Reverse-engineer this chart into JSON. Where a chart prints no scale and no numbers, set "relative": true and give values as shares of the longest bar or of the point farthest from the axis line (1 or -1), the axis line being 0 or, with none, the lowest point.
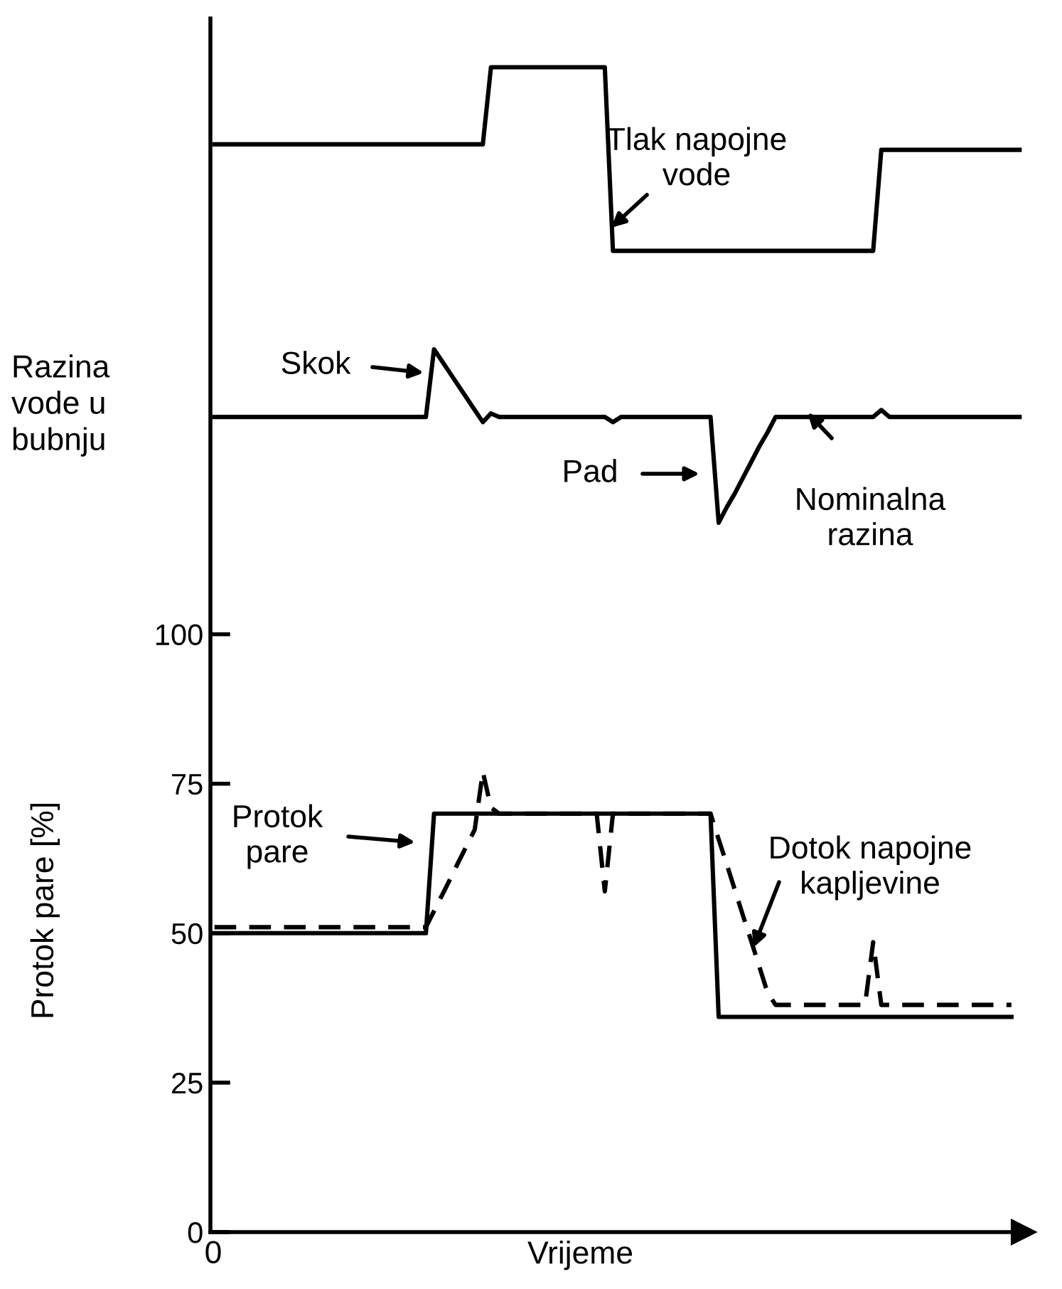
{
  "chart_data": [
    {
      "type": "line",
      "relative": true,
      "line_style": "solid",
      "categories": [
        null,
        null,
        null,
        null,
        null,
        null,
        null,
        null,
        null,
        null,
        null,
        null,
        null,
        null,
        null,
        null,
        null,
        null,
        null,
        null,
        null,
        null,
        null,
        null,
        null,
        null,
        null,
        null,
        null,
        null,
        null,
        null,
        null,
        null,
        null,
        null,
        null,
        null,
        null,
        null,
        null,
        null,
        null,
        null,
        null,
        null,
        null,
        null,
        null,
        null,
        null,
        null,
        null,
        null,
        null,
        null,
        null,
        null,
        null,
        null,
        null,
        null,
        null,
        null,
        null,
        null,
        null,
        null,
        null,
        null,
        null,
        null,
        null,
        null,
        null,
        null,
        null,
        null,
        null,
        null,
        null,
        null,
        null,
        null,
        null,
        null,
        null,
        null,
        null,
        null,
        null,
        null,
        null,
        null,
        null,
        null,
        null,
        null,
        null,
        null
      ],
      "series": [
        {
          "color": "#000000",
          "values": [
            0.58,
            0.58,
            0.58,
            0.58,
            0.58,
            0.58,
            0.58,
            0.58,
            0.58,
            0.58,
            0.58,
            0.58,
            0.58,
            0.58,
            0.58,
            0.58,
            0.58,
            0.58,
            0.58,
            0.58,
            0.58,
            0.58,
            0.58,
            0.58,
            0.58,
            0.58,
            0.58,
            0.58,
            0.58,
            0.58,
            0.58,
            0.58,
            0.58,
            0.58,
            1,
            1,
            1,
            1,
            1,
            1,
            1,
            1,
            1,
            1,
            1,
            1,
            1,
            1,
            1,
            0,
            0,
            0,
            0,
            0,
            0,
            0,
            0,
            0,
            0,
            0,
            0,
            0,
            0,
            0,
            0,
            0,
            0,
            0,
            0,
            0,
            0,
            0,
            0,
            0,
            0,
            0,
            0,
            0,
            0,
            0,
            0,
            0,
            0.55,
            0.55,
            0.55,
            0.55,
            0.55,
            0.55,
            0.55,
            0.55,
            0.55,
            0.55,
            0.55,
            0.55,
            0.55,
            0.55,
            0.55,
            0.55,
            0.55,
            0.55
          ]
        }
      ],
      "annotations": [
        "Tlak napojne\nvode"
      ]
    },
    {
      "type": "line",
      "relative": true,
      "line_style": "solid",
      "ylabel": "Razina\nvode u\nbubnju",
      "categories": [
        null,
        null,
        null,
        null,
        null,
        null,
        null,
        null,
        null,
        null,
        null,
        null,
        null,
        null,
        null,
        null,
        null,
        null,
        null,
        null,
        null,
        null,
        null,
        null,
        null,
        null,
        null,
        null,
        null,
        null,
        null,
        null,
        null,
        null,
        null,
        null,
        null,
        null,
        null,
        null,
        null,
        null,
        null,
        null,
        null,
        null,
        null,
        null,
        null,
        null,
        null,
        null,
        null,
        null,
        null,
        null,
        null,
        null,
        null,
        null,
        null,
        null,
        null,
        null,
        null,
        null,
        null,
        null,
        null,
        null,
        null,
        null,
        null,
        null,
        null,
        null,
        null,
        null,
        null,
        null,
        null,
        null,
        null,
        null,
        null,
        null,
        null,
        null,
        null,
        null,
        null,
        null,
        null,
        null,
        null,
        null,
        null,
        null,
        null,
        null
      ],
      "series": [
        {
          "color": "#000000",
          "values": [
            0.61,
            0.61,
            0.61,
            0.61,
            0.61,
            0.61,
            0.61,
            0.61,
            0.61,
            0.61,
            0.61,
            0.61,
            0.61,
            0.61,
            0.61,
            0.61,
            0.61,
            0.61,
            0.61,
            0.61,
            0.61,
            0.61,
            0.61,
            0.61,
            0.61,
            0.61,
            0.61,
            1,
            0.93,
            0.86,
            0.79,
            0.72,
            0.65,
            0.58,
            0.63,
            0.61,
            0.61,
            0.61,
            0.61,
            0.61,
            0.61,
            0.61,
            0.61,
            0.61,
            0.61,
            0.61,
            0.61,
            0.61,
            0.61,
            0.58,
            0.61,
            0.61,
            0.61,
            0.61,
            0.61,
            0.61,
            0.61,
            0.61,
            0.61,
            0.61,
            0.61,
            0.61,
            0,
            0.09,
            0.17,
            0.26,
            0.35,
            0.44,
            0.52,
            0.61,
            0.61,
            0.61,
            0.61,
            0.61,
            0.61,
            0.61,
            0.61,
            0.61,
            0.61,
            0.61,
            0.61,
            0.61,
            0.65,
            0.61,
            0.61,
            0.61,
            0.61,
            0.61,
            0.61,
            0.61,
            0.61,
            0.61,
            0.61,
            0.61,
            0.61,
            0.61,
            0.61,
            0.61,
            0.61,
            0.61
          ]
        }
      ],
      "annotations": [
        "Skok",
        "Pad",
        "Nominalna\nrazina"
      ]
    },
    {
      "type": "line",
      "ylim": [
        0,
        203
      ],
      "yticks": [
        0,
        25,
        50,
        75,
        100
      ],
      "xlabel": "Vrijeme",
      "ylabel": "Protok pare [%]",
      "categories": [
        null,
        null,
        null,
        null,
        null,
        null,
        null,
        null,
        null,
        null,
        null,
        null,
        null,
        null,
        null,
        null,
        null,
        null,
        null,
        null,
        null,
        null,
        null,
        null,
        null,
        null,
        null,
        null,
        null,
        null,
        null,
        null,
        null,
        null,
        null,
        null,
        null,
        null,
        null,
        null,
        null,
        null,
        null,
        null,
        null,
        null,
        null,
        null,
        null,
        null,
        null,
        null,
        null,
        null,
        null,
        null,
        null,
        null,
        null,
        null,
        null,
        null,
        null,
        null,
        null,
        null,
        null,
        null,
        null,
        null,
        null,
        null,
        null,
        null,
        null,
        null,
        null,
        null,
        null,
        null,
        null,
        null,
        null,
        null,
        null,
        null,
        null,
        null,
        null,
        null,
        null,
        null,
        null,
        null,
        null,
        null,
        null,
        null,
        null,
        null
      ],
      "series": [
        {
          "color": "#000000",
          "line_style": "solid",
          "values": [
            50,
            50,
            50,
            50,
            50,
            50,
            50,
            50,
            50,
            50,
            50,
            50,
            50,
            50,
            50,
            50,
            50,
            50,
            50,
            50,
            50,
            50,
            50,
            50,
            50,
            50,
            50,
            70,
            70,
            70,
            70,
            70,
            70,
            70,
            70,
            70,
            70,
            70,
            70,
            70,
            70,
            70,
            70,
            70,
            70,
            70,
            70,
            70,
            70,
            70,
            70,
            70,
            70,
            70,
            70,
            70,
            70,
            70,
            70,
            70,
            70,
            70,
            36,
            36,
            36,
            36,
            36,
            36,
            36,
            36,
            36,
            36,
            36,
            36,
            36,
            36,
            36,
            36,
            36,
            36,
            36,
            36,
            36,
            36,
            36,
            36,
            36,
            36,
            36,
            36,
            36,
            36,
            36,
            36,
            36,
            36,
            36,
            36,
            36,
            null
          ]
        },
        {
          "color": "#000000",
          "line_style": "dashed",
          "values": [
            51,
            51,
            51,
            51,
            51,
            51,
            51,
            51,
            51,
            51,
            51,
            51,
            51,
            51,
            51,
            51,
            51,
            51,
            51,
            51,
            51,
            51,
            51,
            51,
            51,
            51,
            51,
            53.7,
            56.4,
            59.1,
            61.9,
            64.6,
            67.3,
            77,
            71,
            70,
            70,
            70,
            70,
            70,
            70,
            70,
            70,
            70,
            70,
            70,
            70,
            70,
            57,
            70,
            70,
            70,
            70,
            70,
            70,
            70,
            70,
            70,
            70,
            70,
            70,
            70,
            65.7,
            61.5,
            57.2,
            52.9,
            48.7,
            44.4,
            40.1,
            38,
            38,
            38,
            38,
            38,
            38,
            38,
            38,
            38,
            38,
            38,
            38,
            48.5,
            38,
            38,
            38,
            38,
            38,
            38,
            38,
            38,
            38,
            38,
            38,
            38,
            38,
            38,
            38,
            38,
            38,
            null
          ]
        }
      ],
      "annotations": [
        "Protok\npare",
        "Dotok napojne\nkapljevine",
        "0"
      ]
    }
  ]
}
